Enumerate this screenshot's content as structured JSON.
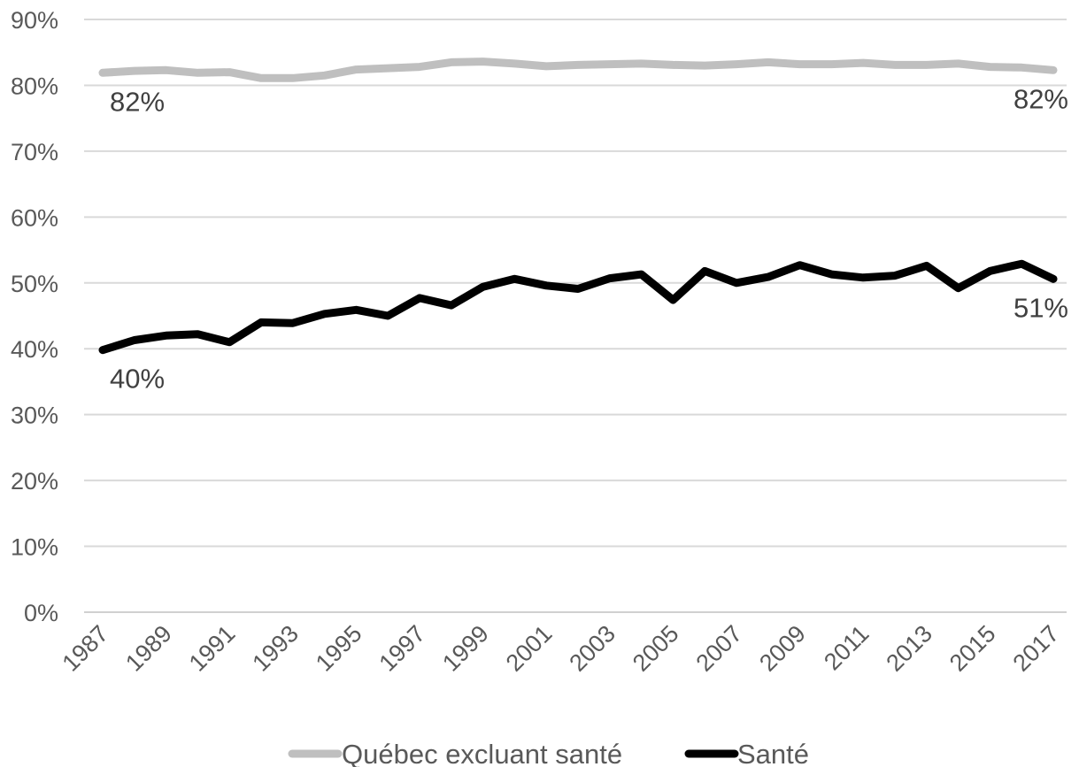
{
  "chart_data": {
    "type": "line",
    "title": "",
    "xlabel": "",
    "ylabel": "",
    "ylim": [
      0,
      90
    ],
    "y_ticks": [
      "0%",
      "10%",
      "20%",
      "30%",
      "40%",
      "50%",
      "60%",
      "70%",
      "80%",
      "90%"
    ],
    "x": [
      1987,
      1988,
      1989,
      1990,
      1991,
      1992,
      1993,
      1994,
      1995,
      1996,
      1997,
      1998,
      1999,
      2000,
      2001,
      2002,
      2003,
      2004,
      2005,
      2006,
      2007,
      2008,
      2009,
      2010,
      2011,
      2012,
      2013,
      2014,
      2015,
      2016,
      2017
    ],
    "x_tick_labels": [
      "1987",
      "1989",
      "1991",
      "1993",
      "1995",
      "1997",
      "1999",
      "2001",
      "2003",
      "2005",
      "2007",
      "2009",
      "2011",
      "2013",
      "2015",
      "2017"
    ],
    "grid": true,
    "legend_position": "bottom",
    "series": [
      {
        "name": "Québec excluant santé",
        "color": "#bfbfbf",
        "values": [
          81.9,
          82.2,
          82.3,
          81.9,
          82.0,
          81.1,
          81.1,
          81.5,
          82.4,
          82.6,
          82.8,
          83.5,
          83.6,
          83.3,
          82.9,
          83.1,
          83.2,
          83.3,
          83.1,
          83.0,
          83.2,
          83.5,
          83.2,
          83.2,
          83.4,
          83.1,
          83.1,
          83.3,
          82.8,
          82.7,
          82.3
        ]
      },
      {
        "name": "Santé",
        "color": "#000000",
        "values": [
          39.8,
          41.3,
          42.0,
          42.2,
          41.0,
          44.0,
          43.9,
          45.3,
          45.9,
          45.0,
          47.7,
          46.6,
          49.4,
          50.6,
          49.6,
          49.1,
          50.7,
          51.3,
          47.4,
          51.8,
          50.0,
          50.9,
          52.7,
          51.3,
          50.8,
          51.1,
          52.6,
          49.2,
          51.8,
          52.9,
          50.6
        ]
      }
    ],
    "data_labels": [
      {
        "series": 0,
        "index": 0,
        "text": "82%"
      },
      {
        "series": 0,
        "index": 30,
        "text": "82%"
      },
      {
        "series": 1,
        "index": 0,
        "text": "40%"
      },
      {
        "series": 1,
        "index": 30,
        "text": "51%"
      }
    ]
  }
}
